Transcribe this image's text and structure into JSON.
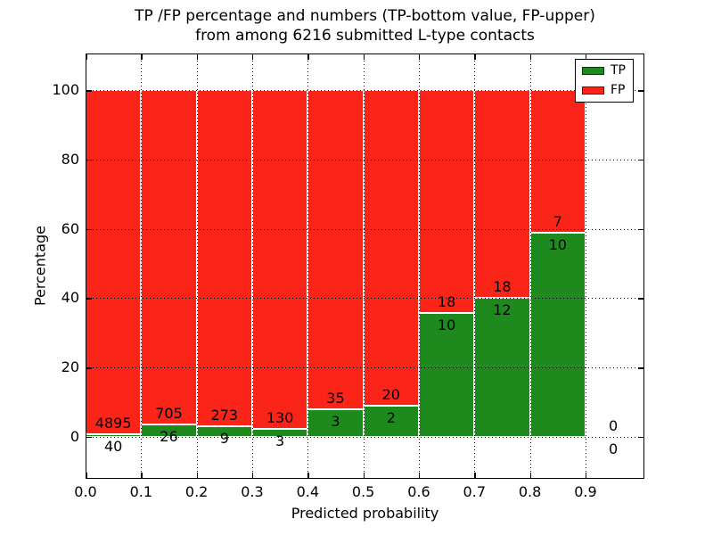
{
  "chart_data": {
    "type": "bar",
    "stacked": true,
    "title_line1": "TP /FP percentage and numbers (TP-bottom value, FP-upper)",
    "title_line2": "from among 6216 submitted L-type contacts",
    "xlabel": "Predicted probability",
    "ylabel": "Percentage",
    "xlim": [
      0.0,
      1.006
    ],
    "ylim": [
      -12.1,
      110.6
    ],
    "x_ticks": [
      "0.0",
      "0.1",
      "0.2",
      "0.3",
      "0.4",
      "0.5",
      "0.6",
      "0.7",
      "0.8",
      "0.9"
    ],
    "y_ticks": [
      "0",
      "20",
      "40",
      "60",
      "80",
      "100"
    ],
    "grid": "dotted-black-over-bars",
    "legend_position": "upper-right",
    "bin_width": 0.1,
    "bins": [
      {
        "x0": 0.0,
        "tp": 40,
        "fp": 4895,
        "tp_pct": 0.81,
        "fp_pct": 99.19
      },
      {
        "x0": 0.1,
        "tp": 26,
        "fp": 705,
        "tp_pct": 3.56,
        "fp_pct": 96.44
      },
      {
        "x0": 0.2,
        "tp": 9,
        "fp": 273,
        "tp_pct": 3.19,
        "fp_pct": 96.81
      },
      {
        "x0": 0.3,
        "tp": 3,
        "fp": 130,
        "tp_pct": 2.26,
        "fp_pct": 97.74
      },
      {
        "x0": 0.4,
        "tp": 3,
        "fp": 35,
        "tp_pct": 7.89,
        "fp_pct": 92.11
      },
      {
        "x0": 0.5,
        "tp": 2,
        "fp": 20,
        "tp_pct": 9.09,
        "fp_pct": 90.91
      },
      {
        "x0": 0.6,
        "tp": 10,
        "fp": 18,
        "tp_pct": 35.71,
        "fp_pct": 64.29
      },
      {
        "x0": 0.7,
        "tp": 12,
        "fp": 18,
        "tp_pct": 40.0,
        "fp_pct": 60.0
      },
      {
        "x0": 0.8,
        "tp": 10,
        "fp": 7,
        "tp_pct": 58.82,
        "fp_pct": 41.18
      },
      {
        "x0": 0.9,
        "tp": 0,
        "fp": 0,
        "tp_pct": null,
        "fp_pct": null
      }
    ],
    "legend": [
      {
        "label": "TP",
        "color": "#1e8a1e"
      },
      {
        "label": "FP",
        "color": "#fa2419"
      }
    ],
    "colors": {
      "tp": "#1e8a1e",
      "fp": "#fa2419",
      "bar_edge": "#ffffff",
      "grid": "#000000",
      "spine": "#000000",
      "text": "#000000",
      "background": "#ffffff"
    }
  }
}
